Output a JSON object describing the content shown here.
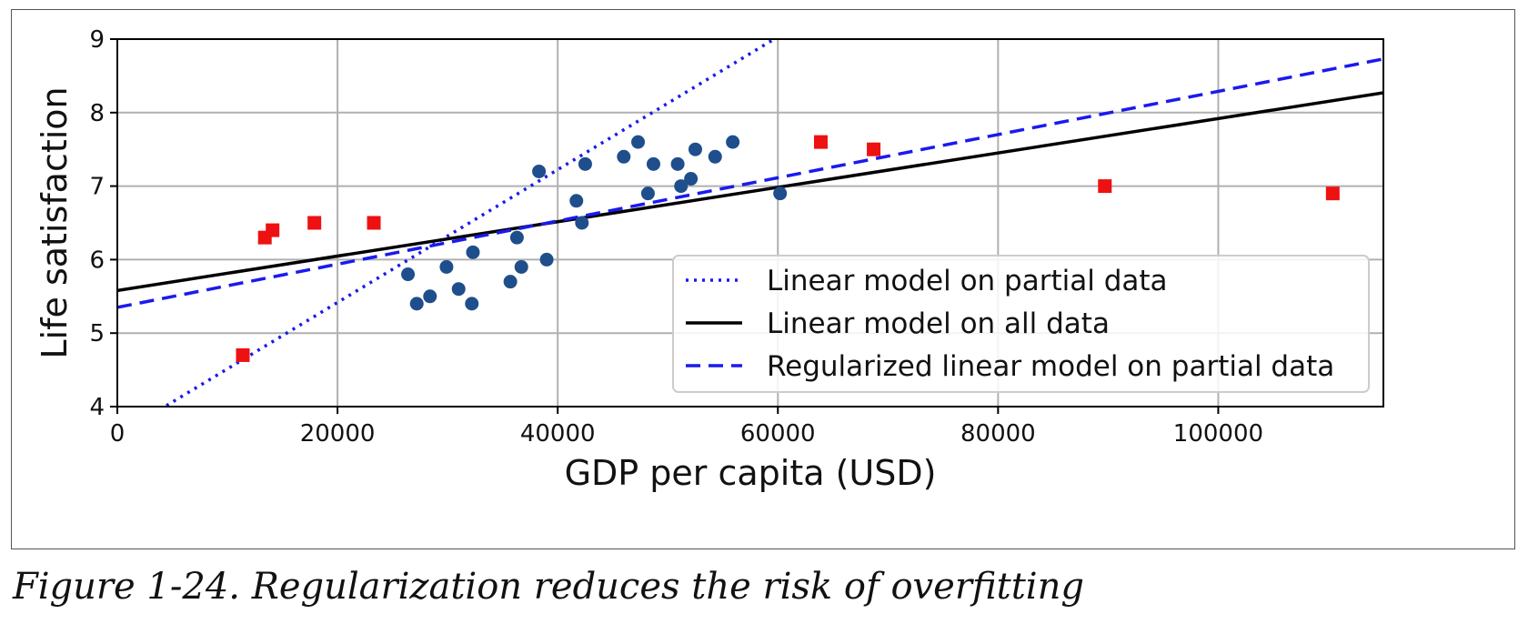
{
  "caption": "Figure 1-24. Regularization reduces the risk of overfitting",
  "chart_data": {
    "type": "scatter",
    "title": "",
    "xlabel": "GDP per capita (USD)",
    "ylabel": "Life satisfaction",
    "xlim": [
      0,
      115000
    ],
    "ylim": [
      4,
      9
    ],
    "x_ticks": [
      0,
      20000,
      40000,
      60000,
      80000,
      100000
    ],
    "y_ticks": [
      4,
      5,
      6,
      7,
      8,
      9
    ],
    "grid": true,
    "legend_position": "lower-right",
    "partial_data_points": {
      "color": "#1f4e8c",
      "marker": "circle",
      "points": [
        [
          26400,
          5.8
        ],
        [
          27200,
          5.4
        ],
        [
          28400,
          5.5
        ],
        [
          29900,
          5.9
        ],
        [
          31000,
          5.6
        ],
        [
          32200,
          5.4
        ],
        [
          32300,
          6.1
        ],
        [
          35700,
          5.7
        ],
        [
          36300,
          6.3
        ],
        [
          36700,
          5.9
        ],
        [
          38300,
          7.2
        ],
        [
          39000,
          6.0
        ],
        [
          41700,
          6.8
        ],
        [
          42200,
          6.5
        ],
        [
          42500,
          7.3
        ],
        [
          46000,
          7.4
        ],
        [
          47300,
          7.6
        ],
        [
          48200,
          6.9
        ],
        [
          48700,
          7.3
        ],
        [
          50900,
          7.3
        ],
        [
          51200,
          7.0
        ],
        [
          52100,
          7.1
        ],
        [
          52500,
          7.5
        ],
        [
          54300,
          7.4
        ],
        [
          55900,
          7.6
        ],
        [
          60200,
          6.9
        ]
      ]
    },
    "excluded_points": {
      "color": "#ee1111",
      "marker": "square",
      "points": [
        [
          11400,
          4.7
        ],
        [
          13400,
          6.3
        ],
        [
          14100,
          6.4
        ],
        [
          17900,
          6.5
        ],
        [
          23300,
          6.5
        ],
        [
          63900,
          7.6
        ],
        [
          68700,
          7.5
        ],
        [
          89700,
          7.0
        ],
        [
          110400,
          6.9
        ]
      ]
    },
    "series": [
      {
        "name": "Linear model on partial data",
        "style": "dotted",
        "color": "#1a1aee",
        "line": [
          [
            0,
            3.61
          ],
          [
            115000,
            14.0
          ]
        ]
      },
      {
        "name": "Linear model on all data",
        "style": "solid",
        "color": "#000000",
        "line": [
          [
            0,
            5.58
          ],
          [
            115000,
            8.27
          ]
        ]
      },
      {
        "name": "Regularized linear model on partial data",
        "style": "dashed",
        "color": "#1a1aee",
        "line": [
          [
            0,
            5.35
          ],
          [
            115000,
            8.73
          ]
        ]
      }
    ]
  }
}
